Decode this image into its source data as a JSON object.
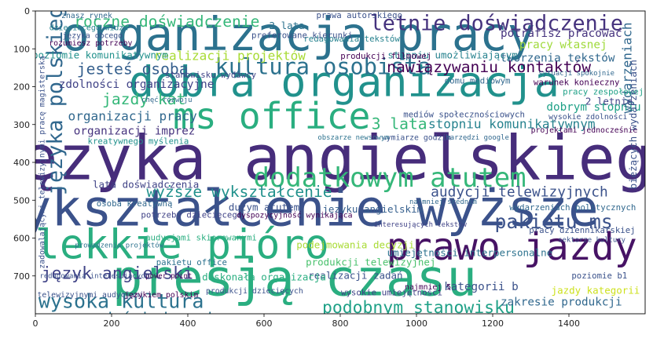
{
  "chart_data": {
    "type": "wordcloud",
    "xlim": [
      0,
      1600
    ],
    "ylim": [
      800,
      0
    ],
    "xticks": [
      0,
      200,
      400,
      600,
      800,
      1000,
      1200,
      1400
    ],
    "yticks": [
      0,
      100,
      200,
      300,
      400,
      500,
      600,
      700
    ],
    "colormap": "viridis",
    "words": [
      {
        "text": "języka angielskiego",
        "x": 790,
        "y": 400,
        "size": 88,
        "color": "#472d7b"
      },
      {
        "text": "wykształcenie wyższe",
        "x": 680,
        "y": 530,
        "size": 72,
        "color": "#3b528b"
      },
      {
        "text": "presją czasu",
        "x": 680,
        "y": 715,
        "size": 72,
        "color": "#2aae80"
      },
      {
        "text": "organizacja pracy",
        "x": 690,
        "y": 70,
        "size": 66,
        "color": "#2c728e"
      },
      {
        "text": "dobra organizacja",
        "x": 810,
        "y": 195,
        "size": 60,
        "color": "#21918c"
      },
      {
        "text": "lekkie pióro",
        "x": 385,
        "y": 625,
        "size": 58,
        "color": "#2aae80"
      },
      {
        "text": "prawo jazdy",
        "x": 1250,
        "y": 630,
        "size": 54,
        "color": "#471365"
      },
      {
        "text": "ms office",
        "x": 620,
        "y": 285,
        "size": 52,
        "color": "#2aae80"
      },
      {
        "text": "dodatkowym atutem",
        "x": 930,
        "y": 445,
        "size": 38,
        "color": "#35b779"
      },
      {
        "text": "kultura osobista",
        "x": 755,
        "y": 150,
        "size": 32,
        "color": "#2c728e"
      },
      {
        "text": "letnie doświadczenie",
        "x": 1210,
        "y": 35,
        "size": 30,
        "color": "#46337e"
      },
      {
        "text": "języka polskiego",
        "x": 55,
        "y": 220,
        "size": 30,
        "color": "#31688e",
        "rotate": -90
      },
      {
        "text": "wysoka kultura",
        "x": 225,
        "y": 770,
        "size": 28,
        "color": "#2c728e"
      },
      {
        "text": "pakietu ms",
        "x": 1360,
        "y": 560,
        "size": 28,
        "color": "#3b528b"
      },
      {
        "text": "podobnym stanowisku",
        "x": 1005,
        "y": 785,
        "size": 24,
        "color": "#1fa187"
      },
      {
        "text": "język angielski",
        "x": 215,
        "y": 695,
        "size": 24,
        "color": "#404387"
      },
      {
        "text": "roczne doświadczenie",
        "x": 345,
        "y": 30,
        "size": 22,
        "color": "#35b779"
      },
      {
        "text": "jazdy kat",
        "x": 285,
        "y": 235,
        "size": 22,
        "color": "#35b779"
      },
      {
        "text": "jesteś osobą",
        "x": 255,
        "y": 155,
        "size": 22,
        "color": "#355f8d"
      },
      {
        "text": "nawiązywaniu kontaktów",
        "x": 1190,
        "y": 150,
        "size": 22,
        "color": "#440154"
      },
      {
        "text": "wyższe wykształcenie",
        "x": 535,
        "y": 480,
        "size": 22,
        "color": "#21918c"
      },
      {
        "text": "audycji telewizyjnych",
        "x": 1270,
        "y": 480,
        "size": 20,
        "color": "#3b528b"
      },
      {
        "text": "3 lata",
        "x": 955,
        "y": 300,
        "size": 22,
        "color": "#35b779"
      },
      {
        "text": "masz doświadczenie",
        "x": 275,
        "y": 815,
        "size": 22,
        "color": "#2c728e"
      },
      {
        "text": "realizacji projektów",
        "x": 510,
        "y": 120,
        "size": 18,
        "color": "#a8db34"
      },
      {
        "text": "stopniu komunikatywnym",
        "x": 1250,
        "y": 300,
        "size": 18,
        "color": "#26828e"
      },
      {
        "text": "organizacji pracy",
        "x": 255,
        "y": 280,
        "size": 18,
        "color": "#31688e"
      },
      {
        "text": "zdolności organizacyjne",
        "x": 265,
        "y": 195,
        "size": 16,
        "color": "#404387"
      },
      {
        "text": "organizacji imprez",
        "x": 260,
        "y": 318,
        "size": 16,
        "color": "#46337e"
      },
      {
        "text": "dobrym stopniu",
        "x": 1465,
        "y": 255,
        "size": 16,
        "color": "#1fa187"
      },
      {
        "text": "wydarzeniach",
        "x": 1555,
        "y": 150,
        "size": 18,
        "color": "#31688e",
        "rotate": -90
      },
      {
        "text": "potrafisz pracować",
        "x": 1380,
        "y": 60,
        "size": 16,
        "color": "#46337e"
      },
      {
        "text": "pracy własnej",
        "x": 1385,
        "y": 90,
        "size": 16,
        "color": "#9fda3a"
      },
      {
        "text": "tworzenia tekstów",
        "x": 1370,
        "y": 125,
        "size": 16,
        "color": "#31688e"
      },
      {
        "text": "stopniu umożliwiającym",
        "x": 1095,
        "y": 118,
        "size": 14,
        "color": "#26828e"
      },
      {
        "text": "poziomie komunikatywnym",
        "x": 170,
        "y": 118,
        "size": 14,
        "color": "#21918c"
      },
      {
        "text": "lata doświadczenia",
        "x": 290,
        "y": 460,
        "size": 14,
        "color": "#404387"
      },
      {
        "text": "duzym atutem",
        "x": 600,
        "y": 520,
        "size": 14,
        "color": "#3b528b"
      },
      {
        "text": "języku angielskim",
        "x": 885,
        "y": 525,
        "size": 14,
        "color": "#355f8d"
      },
      {
        "text": "umiejętności interpersonalne",
        "x": 1140,
        "y": 640,
        "size": 14,
        "color": "#2c728e"
      },
      {
        "text": "podejmowania decyzji",
        "x": 840,
        "y": 620,
        "size": 14,
        "color": "#a8db34"
      },
      {
        "text": "produkcji telewizyjnej",
        "x": 880,
        "y": 665,
        "size": 14,
        "color": "#4ac16d"
      },
      {
        "text": "realizacji zadań",
        "x": 840,
        "y": 700,
        "size": 14,
        "color": "#3b528b"
      },
      {
        "text": "kategorii b",
        "x": 1170,
        "y": 730,
        "size": 16,
        "color": "#3b528b"
      },
      {
        "text": "jazdy kategorii",
        "x": 1470,
        "y": 740,
        "size": 14,
        "color": "#cde11d"
      },
      {
        "text": "zakresie produkcji",
        "x": 1380,
        "y": 770,
        "size": 16,
        "color": "#31688e"
      },
      {
        "text": "obsługi komputera",
        "x": 1465,
        "y": 815,
        "size": 14,
        "color": "#355f8d"
      },
      {
        "text": "dobrej znajomości",
        "x": 1490,
        "y": 845,
        "size": 12,
        "color": "#440154"
      },
      {
        "text": "doskonała organizacja",
        "x": 600,
        "y": 705,
        "size": 14,
        "color": "#2aae80"
      },
      {
        "text": "doświadczenie zawodowe",
        "x": 625,
        "y": 855,
        "size": 14,
        "color": "#2c728e"
      },
      {
        "text": "wysokie umiejętności",
        "x": 935,
        "y": 745,
        "size": 12,
        "color": "#404387"
      },
      {
        "text": "profesjonalnego sprzętu",
        "x": 1175,
        "y": 855,
        "size": 12,
        "color": "#35b779"
      },
      {
        "text": "audycjami skierowanymi",
        "x": 435,
        "y": 600,
        "size": 12,
        "color": "#2aae80"
      },
      {
        "text": "pracy zespołowej",
        "x": 1490,
        "y": 215,
        "size": 12,
        "color": "#1fa187"
      },
      {
        "text": "2 lata",
        "x": 660,
        "y": 40,
        "size": 14,
        "color": "#2c728e"
      },
      {
        "text": "2 letnie",
        "x": 1505,
        "y": 240,
        "size": 14,
        "color": "#404387"
      },
      {
        "text": "domu mediowym",
        "x": 1160,
        "y": 185,
        "size": 12,
        "color": "#31688e"
      },
      {
        "text": "warunek konieczny",
        "x": 1420,
        "y": 190,
        "size": 12,
        "color": "#440154"
      },
      {
        "text": "mediów społecznościowych",
        "x": 1125,
        "y": 275,
        "size": 12,
        "color": "#3b528b"
      },
      {
        "text": "produkcji filmowej",
        "x": 920,
        "y": 120,
        "size": 12,
        "color": "#440154"
      },
      {
        "text": "stanowisku wydawcy",
        "x": 460,
        "y": 170,
        "size": 12,
        "color": "#404387"
      },
      {
        "text": "wydarzeniach politycznych",
        "x": 1410,
        "y": 520,
        "size": 12,
        "color": "#31688e"
      },
      {
        "text": "pracy dziennikarskiej",
        "x": 1435,
        "y": 580,
        "size": 12,
        "color": "#3b528b"
      },
      {
        "text": "potrzeby dziecięcego",
        "x": 410,
        "y": 540,
        "size": 12,
        "color": "#404387"
      },
      {
        "text": "kreatywnego myślenia",
        "x": 270,
        "y": 345,
        "size": 12,
        "color": "#21918c"
      },
      {
        "text": "osoba kreatywną",
        "x": 260,
        "y": 510,
        "size": 12,
        "color": "#31688e"
      },
      {
        "text": "pakietu office",
        "x": 410,
        "y": 665,
        "size": 12,
        "color": "#2c728e"
      },
      {
        "text": "telewizyjnymi audycjami",
        "x": 145,
        "y": 750,
        "size": 11,
        "color": "#3b528b"
      },
      {
        "text": "językiem polskim",
        "x": 330,
        "y": 750,
        "size": 11,
        "color": "#440154"
      },
      {
        "text": "kierunki humanistyczne",
        "x": 570,
        "y": 810,
        "size": 12,
        "color": "#a8db34"
      },
      {
        "text": "redagowania tekstów",
        "x": 830,
        "y": 75,
        "size": 12,
        "color": "#26828e"
      },
      {
        "text": "preferowane kierunki",
        "x": 700,
        "y": 65,
        "size": 12,
        "color": "#3b528b"
      },
      {
        "text": "prawa autorskiego",
        "x": 850,
        "y": 12,
        "size": 12,
        "color": "#3b528b"
      },
      {
        "text": "dzieciecego widza",
        "x": 140,
        "y": 45,
        "size": 11,
        "color": "#26828e"
      },
      {
        "text": "języka obcego",
        "x": 150,
        "y": 65,
        "size": 11,
        "color": "#3b528b"
      },
      {
        "text": "rozumiesz potrzeby",
        "x": 145,
        "y": 85,
        "size": 11,
        "color": "#440154"
      },
      {
        "text": "znasz rynek",
        "x": 135,
        "y": 12,
        "size": 11,
        "color": "#31688e"
      },
      {
        "text": "dyspozycyjność wynikająca",
        "x": 680,
        "y": 540,
        "size": 11,
        "color": "#440154"
      },
      {
        "text": "interesujących tekstów",
        "x": 1010,
        "y": 565,
        "size": 10,
        "color": "#404387"
      },
      {
        "text": "najmniej średnim",
        "x": 1070,
        "y": 505,
        "size": 10,
        "color": "#31688e"
      },
      {
        "text": "social media",
        "x": 940,
        "y": 855,
        "size": 11,
        "color": "#3b528b"
      },
      {
        "text": "sprzętu audio",
        "x": 1460,
        "y": 875,
        "size": 12,
        "color": "#3b528b"
      },
      {
        "text": "poziomie b1",
        "x": 1480,
        "y": 700,
        "size": 12,
        "color": "#3b528b"
      },
      {
        "text": "wymiarze godzin",
        "x": 1000,
        "y": 335,
        "size": 11,
        "color": "#3b528b"
      },
      {
        "text": "obszarze newsowym",
        "x": 835,
        "y": 335,
        "size": 10,
        "color": "#2c728e"
      },
      {
        "text": "chęć rozwoju",
        "x": 345,
        "y": 235,
        "size": 10,
        "color": "#31688e"
      },
      {
        "text": "najmniej 5",
        "x": 1030,
        "y": 730,
        "size": 11,
        "color": "#440154"
      },
      {
        "text": "sektorze kultury",
        "x": 1460,
        "y": 605,
        "size": 10,
        "color": "#3b528b"
      },
      {
        "text": "projektami jednocześnie",
        "x": 1440,
        "y": 315,
        "size": 11,
        "color": "#440154"
      },
      {
        "text": "wysokie zdolności",
        "x": 1450,
        "y": 280,
        "size": 11,
        "color": "#3b528b"
      },
      {
        "text": "harzędzi google",
        "x": 1160,
        "y": 335,
        "size": 10,
        "color": "#31688e"
      },
      {
        "text": "prowadzenia projektów",
        "x": 220,
        "y": 620,
        "size": 10,
        "color": "#2c728e"
      },
      {
        "text": "power point",
        "x": 350,
        "y": 700,
        "size": 10,
        "color": "#440154"
      },
      {
        "text": "produkcji dziecięcych",
        "x": 575,
        "y": 740,
        "size": 11,
        "color": "#3b528b"
      },
      {
        "text": "redagowania interesujących",
        "x": 155,
        "y": 700,
        "size": 10,
        "color": "#3b528b"
      },
      {
        "text": "dobrych relacji",
        "x": 170,
        "y": 810,
        "size": 10,
        "color": "#2c728e"
      },
      {
        "text": "sytuacji spokojnie",
        "x": 1420,
        "y": 165,
        "size": 10,
        "color": "#31688e"
      },
      {
        "text": "bieżących wydarzeniach",
        "x": 1570,
        "y": 300,
        "size": 14,
        "color": "#3b528b",
        "rotate": -90
      },
      {
        "text": "zadowalającymi telewizyjnymi pracę magisterską",
        "x": 18,
        "y": 400,
        "size": 11,
        "color": "#3b528b",
        "rotate": -90
      }
    ]
  }
}
